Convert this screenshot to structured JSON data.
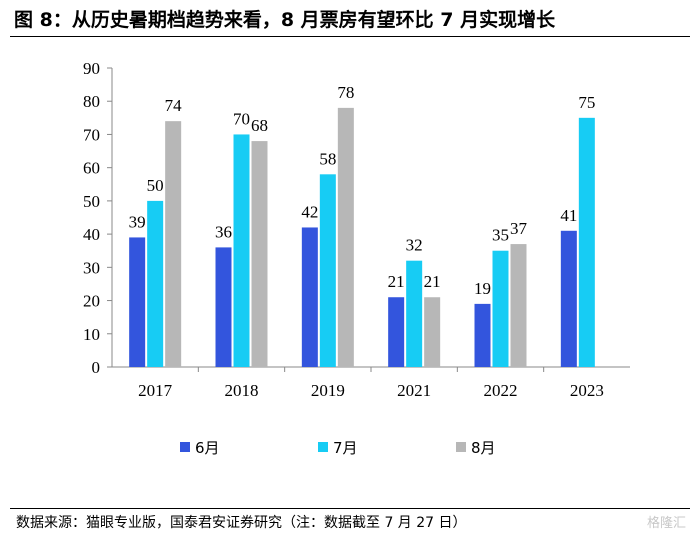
{
  "title": "图 8：从历史暑期档趋势来看，8 月票房有望环比 7 月实现增长",
  "source": "数据来源：猫眼专业版，国泰君安证券研究（注：数据截至 7 月 27 日）",
  "watermark": "格隆汇",
  "chart_data": {
    "type": "bar",
    "title": "",
    "xlabel": "",
    "ylabel": "",
    "ylim": [
      0,
      90
    ],
    "yticks": [
      0,
      10,
      20,
      30,
      40,
      50,
      60,
      70,
      80,
      90
    ],
    "grid": false,
    "legend_position": "bottom",
    "categories": [
      "2017",
      "2018",
      "2019",
      "2021",
      "2022",
      "2023"
    ],
    "series": [
      {
        "name": "6月",
        "color": "#3355dd",
        "values": [
          39,
          36,
          42,
          21,
          19,
          41
        ]
      },
      {
        "name": "7月",
        "color": "#17ccf4",
        "values": [
          50,
          70,
          58,
          32,
          35,
          75
        ]
      },
      {
        "name": "8月",
        "color": "#b7b7b7",
        "values": [
          74,
          68,
          78,
          21,
          37,
          null
        ]
      }
    ]
  }
}
